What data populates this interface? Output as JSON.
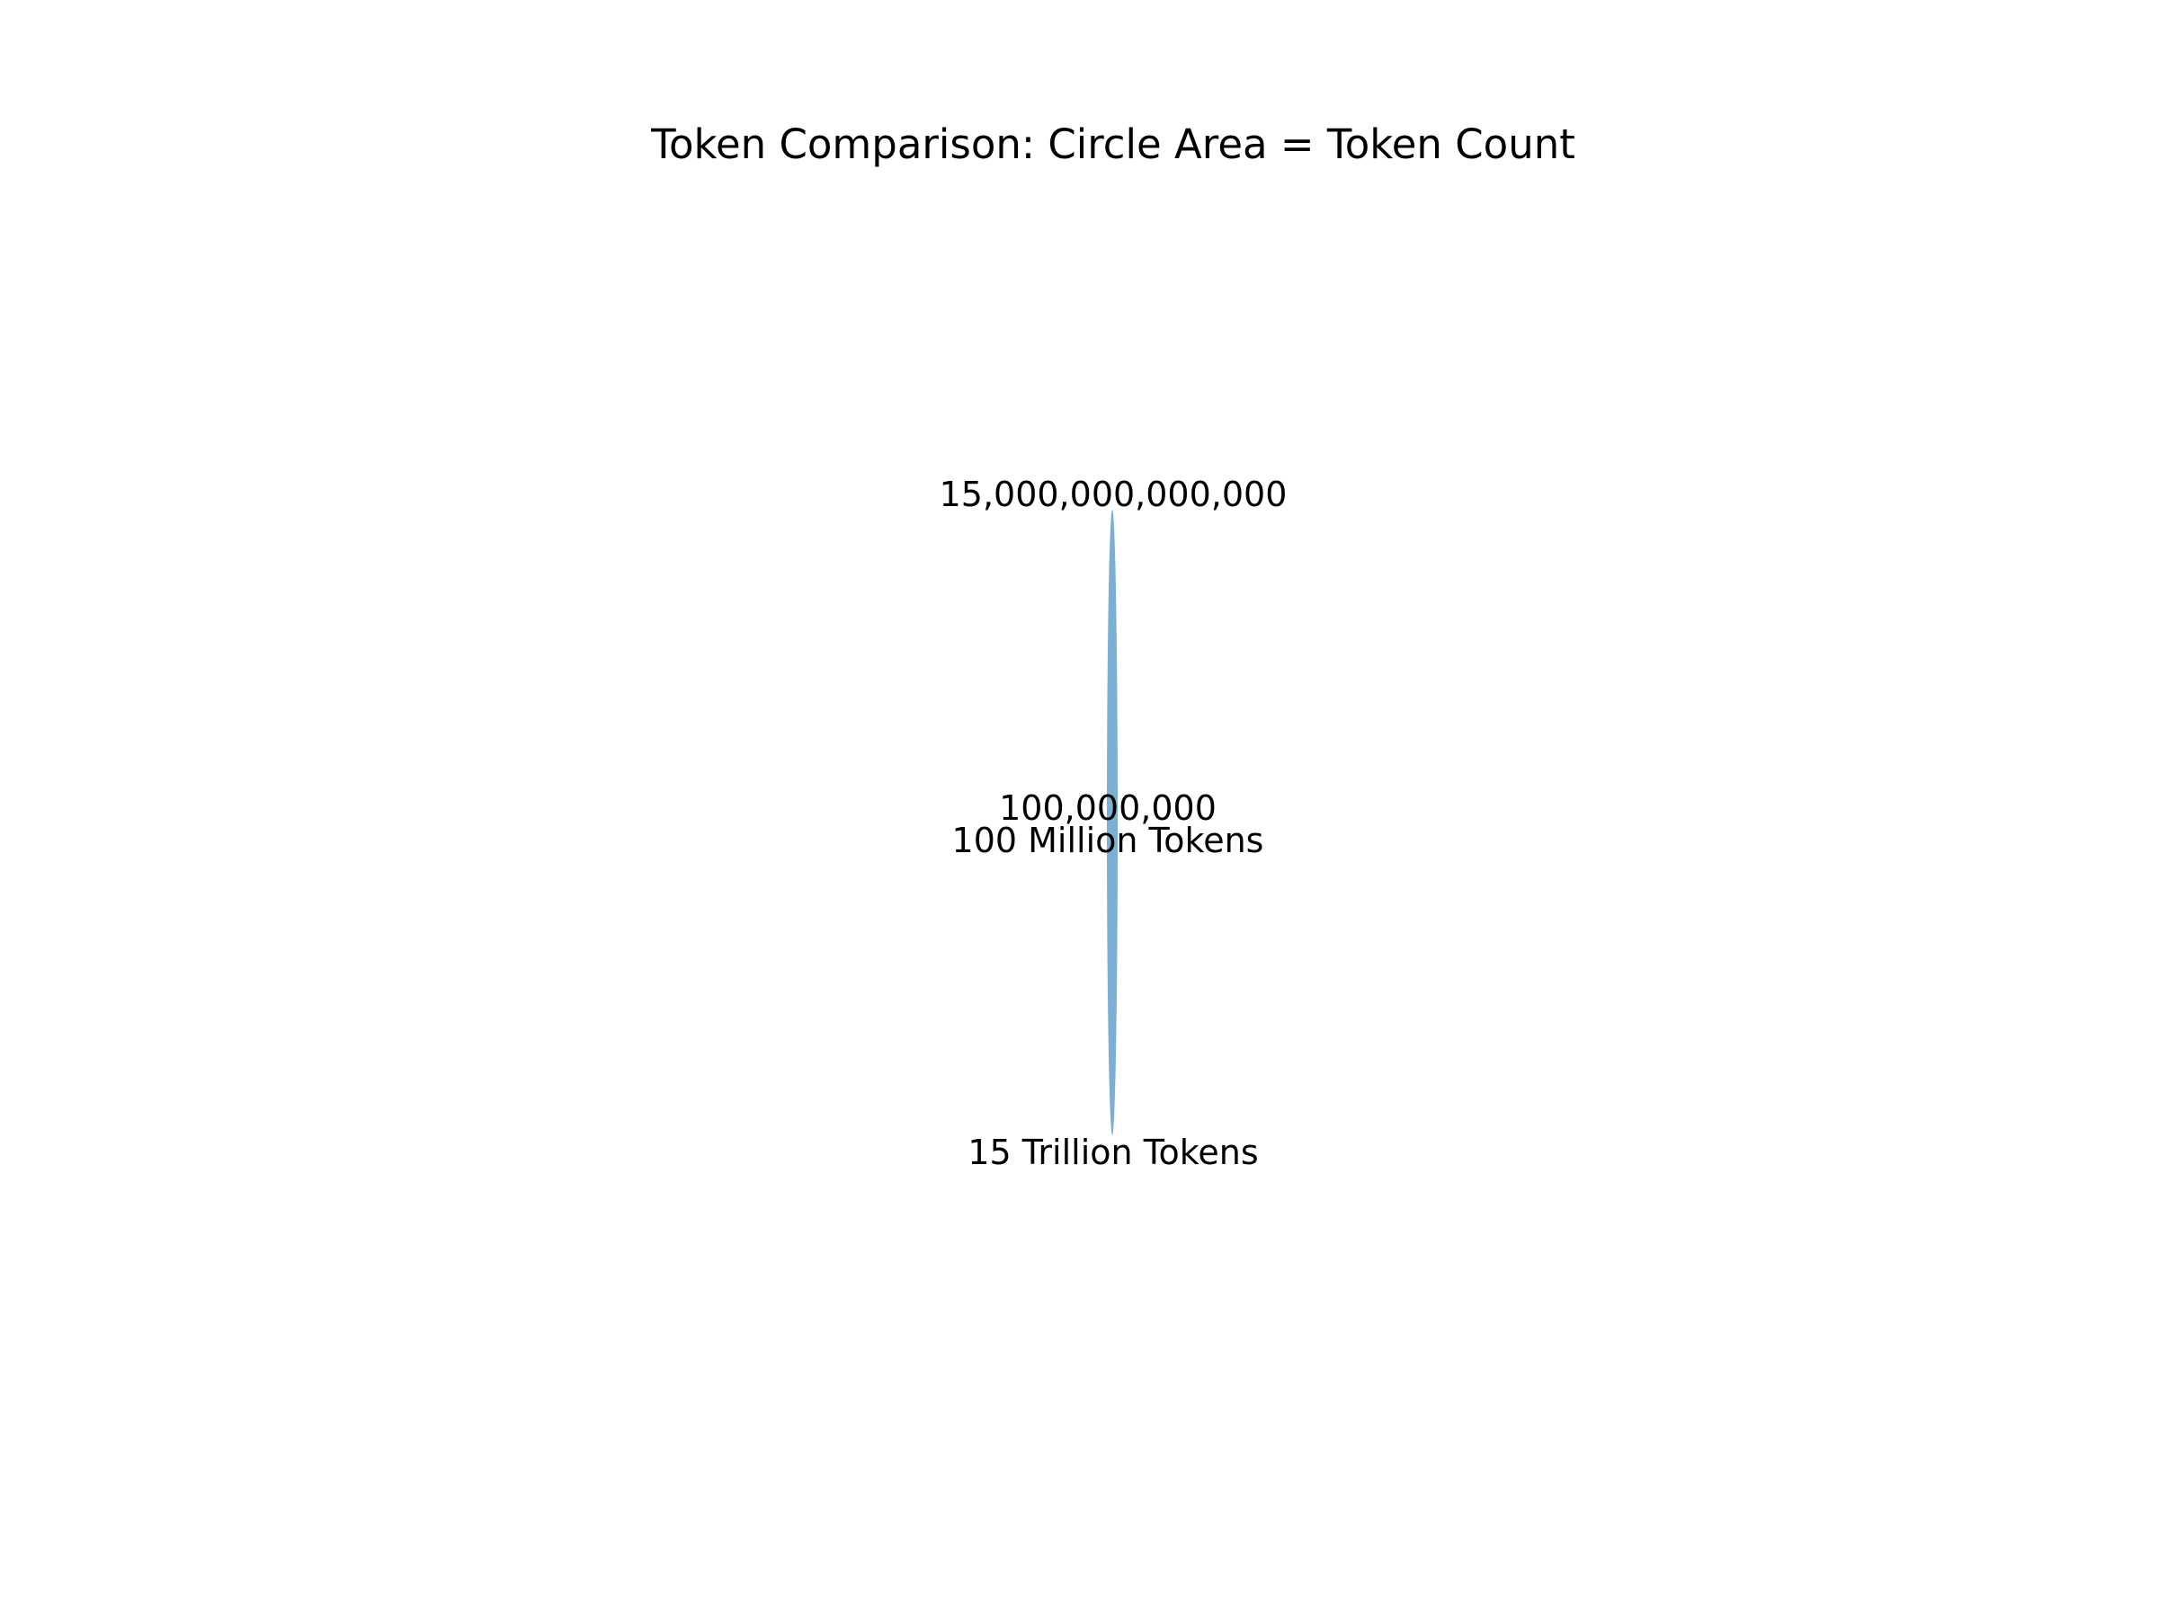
{
  "chart_data": {
    "type": "bubble",
    "title": "Token Comparison: Circle Area = Token Count",
    "encoding": "circle area proportional to token count",
    "series": [
      {
        "name": "15 Trillion Tokens",
        "value": 15000000000000,
        "value_label": "15,000,000,000,000",
        "color": "#7bafd4"
      },
      {
        "name": "100 Million Tokens",
        "value": 100000000,
        "value_label": "100,000,000",
        "color": "#7bafd4"
      }
    ],
    "axes_visible": false,
    "grid": false,
    "legend": "none"
  }
}
